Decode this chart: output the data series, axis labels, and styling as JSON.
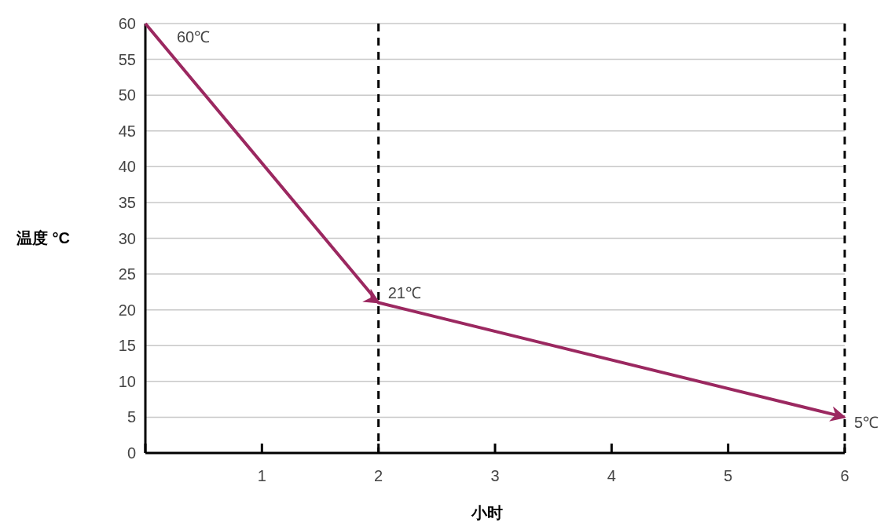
{
  "chart_data": {
    "type": "line",
    "xlabel": "小时",
    "ylabel": "温度 °C",
    "x": [
      0,
      2,
      6
    ],
    "series": [
      {
        "color": "#9b2860",
        "values": [
          60,
          21,
          5
        ]
      }
    ],
    "xlim": [
      0,
      6
    ],
    "ylim": [
      0,
      60
    ],
    "xticks": [
      {
        "value": 0,
        "label": null
      },
      1,
      2,
      3,
      4,
      5,
      6
    ],
    "yticks": [
      0,
      5,
      10,
      15,
      20,
      25,
      30,
      35,
      40,
      45,
      50,
      55,
      60
    ],
    "grid": "y",
    "marker": "none",
    "line_style": "solid",
    "ref_lines": [
      {
        "axis": "x",
        "value": 2,
        "label": null,
        "color": "#000000",
        "line_style": "dashed"
      },
      {
        "axis": "x",
        "value": 6,
        "label": null,
        "color": "#000000",
        "line_style": "dashed"
      }
    ],
    "annotations": [
      {
        "text": "60℃",
        "x": 0,
        "y": 60
      },
      {
        "text": "21℃",
        "x": 2,
        "y": 21
      },
      {
        "text": "5℃",
        "x": 6,
        "y": 5
      }
    ]
  }
}
